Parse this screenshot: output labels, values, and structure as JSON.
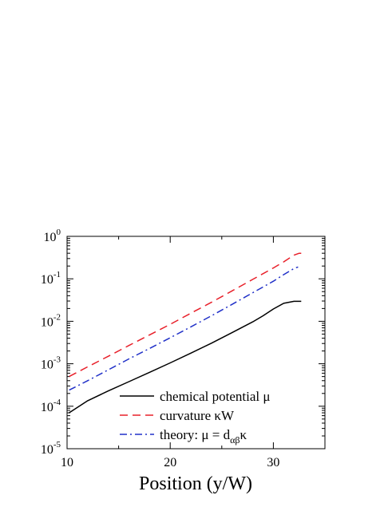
{
  "chart_data": {
    "type": "line",
    "xlabel": "Position (y/W)",
    "ylabel": "",
    "xlim": [
      10,
      35
    ],
    "ylim": [
      1e-05,
      1
    ],
    "yscale": "log",
    "grid": false,
    "legend_position": "bottom-center",
    "x_ticks": [
      10,
      20,
      30
    ],
    "x_tick_labels": [
      "10",
      "20",
      "30"
    ],
    "y_ticks": [
      1e-05,
      0.0001,
      0.001,
      0.01,
      0.1,
      1
    ],
    "y_tick_labels": [
      {
        "base": "10",
        "exp": "-5"
      },
      {
        "base": "10",
        "exp": "-4"
      },
      {
        "base": "10",
        "exp": "-3"
      },
      {
        "base": "10",
        "exp": "-2"
      },
      {
        "base": "10",
        "exp": "-1"
      },
      {
        "base": "10",
        "exp": "0"
      }
    ],
    "series": [
      {
        "name": "chemical potential μ",
        "legend": {
          "text": "chemical potential μ"
        },
        "color": "#000000",
        "dash": "solid",
        "x": [
          10.2,
          12,
          14,
          16,
          18,
          20,
          22,
          24,
          26,
          28,
          29,
          30,
          31,
          32,
          32.7
        ],
        "y": [
          7e-05,
          0.000135,
          0.00023,
          0.00038,
          0.00063,
          0.00105,
          0.00178,
          0.00305,
          0.0054,
          0.0097,
          0.0135,
          0.0195,
          0.0265,
          0.0295,
          0.0295
        ]
      },
      {
        "name": "curvature κW",
        "legend": {
          "text": "curvature κW"
        },
        "color": "#e8202a",
        "dash": "dashed",
        "x": [
          10.2,
          12,
          14,
          16,
          18,
          20,
          22,
          24,
          26,
          28,
          30,
          31,
          32,
          32.5,
          32.7
        ],
        "y": [
          0.0005,
          0.00085,
          0.0015,
          0.0027,
          0.0048,
          0.0085,
          0.0155,
          0.028,
          0.052,
          0.097,
          0.18,
          0.25,
          0.36,
          0.4,
          0.4
        ]
      },
      {
        "name": "theory: μ = dαβκ",
        "legend": {
          "text": "theory: μ = d",
          "sub": "αβ",
          "after": "κ"
        },
        "color": "#2030c8",
        "dash": "dashdot",
        "x": [
          10.2,
          12,
          14,
          16,
          18,
          20,
          22,
          24,
          26,
          28,
          30,
          31,
          32,
          32.4
        ],
        "y": [
          0.00024,
          0.0004,
          0.00072,
          0.0013,
          0.0023,
          0.0041,
          0.0074,
          0.0135,
          0.025,
          0.047,
          0.088,
          0.125,
          0.175,
          0.19
        ]
      }
    ]
  }
}
